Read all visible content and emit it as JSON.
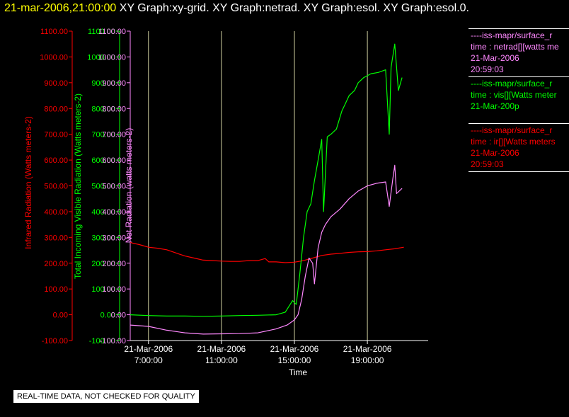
{
  "title": {
    "timestamp": "21-mar-2006,21:00:00",
    "graphs": "XY Graph:xy-grid.  XY Graph:netrad.  XY Graph:esol.  XY Graph:esol.0."
  },
  "notice": "REAL-TIME DATA, NOT CHECKED FOR QUALITY",
  "colors": {
    "infrared": "#ff0000",
    "visible": "#00ff00",
    "net": "#ff88ff",
    "axis": "#ffffff",
    "grid": "#d0d0a0",
    "title_timestamp": "#ffff00"
  },
  "legend": [
    {
      "lines": [
        "----iss-mapr/surface_r",
        "time : netrad[][watts me",
        "21-Mar-2006",
        "20:59:03"
      ],
      "color": "#ff88ff"
    },
    {
      "lines": [
        "----iss-mapr/surface_r",
        "time : vis[][Watts meter",
        "21-Mar-200p"
      ],
      "color": "#00ff00"
    },
    {
      "lines": [
        "----iss-mapr/surface_r",
        "time : ir[][Watts meters",
        "21-Mar-2006",
        "20:59:03"
      ],
      "color": "#ff0000"
    }
  ],
  "chart_data": {
    "type": "line",
    "xlabel": "Time",
    "x_ticks": [
      {
        "date": "21-Mar-2006",
        "time": "7:00:00",
        "hour": 7
      },
      {
        "date": "21-Mar-2006",
        "time": "11:00:00",
        "hour": 11
      },
      {
        "date": "21-Mar-2006",
        "time": "15:00:00",
        "hour": 15
      },
      {
        "date": "21-Mar-2006",
        "time": "19:00:00",
        "hour": 19
      }
    ],
    "xlim": [
      "21-Mar-2006 6:00:00",
      "21-Mar-2006 22:20:00"
    ],
    "ylim": [
      -100,
      1100
    ],
    "y_ticks": [
      "-100.00",
      "0.00",
      "100.00",
      "200.00",
      "300.00",
      "400.00",
      "500.00",
      "600.00",
      "700.00",
      "800.00",
      "900.00",
      "1000.00",
      "1100.00"
    ],
    "axes": [
      {
        "name": "infrared",
        "ylabel": "Infrared Radiation (Watts meters-2)",
        "color": "#ff0000"
      },
      {
        "name": "visible",
        "ylabel": "Total Incoming Visible Radiation (Watts meters-2)",
        "color": "#00ff00"
      },
      {
        "name": "net",
        "ylabel": "Net Radiation (watts meters-2)",
        "color": "#ff88ff"
      }
    ],
    "grid": "vertical",
    "series": [
      {
        "key": "infrared",
        "color": "#ff0000",
        "points": [
          [
            6.0,
            280
          ],
          [
            6.5,
            272
          ],
          [
            7.0,
            262
          ],
          [
            7.5,
            258
          ],
          [
            8.0,
            252
          ],
          [
            8.5,
            240
          ],
          [
            9.0,
            228
          ],
          [
            9.5,
            220
          ],
          [
            10.0,
            212
          ],
          [
            10.5,
            210
          ],
          [
            11.0,
            208
          ],
          [
            11.5,
            207
          ],
          [
            12.0,
            207
          ],
          [
            12.5,
            210
          ],
          [
            13.0,
            210
          ],
          [
            13.4,
            218
          ],
          [
            13.6,
            205
          ],
          [
            14.0,
            205
          ],
          [
            14.5,
            202
          ],
          [
            15.0,
            204
          ],
          [
            15.5,
            210
          ],
          [
            16.0,
            220
          ],
          [
            16.5,
            230
          ],
          [
            17.0,
            235
          ],
          [
            17.5,
            238
          ],
          [
            18.0,
            242
          ],
          [
            18.5,
            244
          ],
          [
            19.0,
            245
          ],
          [
            19.5,
            248
          ],
          [
            20.0,
            252
          ],
          [
            20.5,
            256
          ],
          [
            21.0,
            262
          ]
        ]
      },
      {
        "key": "visible",
        "color": "#00ff00",
        "points": [
          [
            6.0,
            0
          ],
          [
            7.0,
            -3
          ],
          [
            8.0,
            -5
          ],
          [
            9.0,
            -5
          ],
          [
            10.0,
            -6
          ],
          [
            11.0,
            -5
          ],
          [
            12.0,
            -3
          ],
          [
            13.0,
            -2
          ],
          [
            14.0,
            0
          ],
          [
            14.5,
            10
          ],
          [
            14.9,
            55
          ],
          [
            15.1,
            40
          ],
          [
            15.3,
            160
          ],
          [
            15.5,
            300
          ],
          [
            15.7,
            400
          ],
          [
            15.9,
            430
          ],
          [
            16.1,
            520
          ],
          [
            16.3,
            600
          ],
          [
            16.5,
            680
          ],
          [
            16.6,
            400
          ],
          [
            16.8,
            690
          ],
          [
            17.0,
            700
          ],
          [
            17.3,
            720
          ],
          [
            17.6,
            790
          ],
          [
            17.8,
            820
          ],
          [
            18.0,
            850
          ],
          [
            18.3,
            870
          ],
          [
            18.5,
            900
          ],
          [
            18.8,
            920
          ],
          [
            19.2,
            935
          ],
          [
            19.6,
            940
          ],
          [
            20.0,
            950
          ],
          [
            20.2,
            700
          ],
          [
            20.3,
            960
          ],
          [
            20.5,
            1050
          ],
          [
            20.7,
            870
          ],
          [
            20.9,
            920
          ]
        ]
      },
      {
        "key": "net",
        "color": "#ff88ff",
        "points": [
          [
            6.0,
            -40
          ],
          [
            7.0,
            -45
          ],
          [
            8.0,
            -60
          ],
          [
            9.0,
            -70
          ],
          [
            10.0,
            -75
          ],
          [
            11.0,
            -74
          ],
          [
            12.0,
            -73
          ],
          [
            13.0,
            -70
          ],
          [
            14.0,
            -55
          ],
          [
            14.6,
            -40
          ],
          [
            15.0,
            -20
          ],
          [
            15.2,
            0
          ],
          [
            15.4,
            60
          ],
          [
            15.6,
            150
          ],
          [
            15.8,
            220
          ],
          [
            16.0,
            200
          ],
          [
            16.1,
            120
          ],
          [
            16.3,
            260
          ],
          [
            16.5,
            320
          ],
          [
            16.7,
            350
          ],
          [
            17.0,
            380
          ],
          [
            17.5,
            410
          ],
          [
            18.0,
            450
          ],
          [
            18.5,
            480
          ],
          [
            19.0,
            500
          ],
          [
            19.5,
            510
          ],
          [
            20.0,
            515
          ],
          [
            20.2,
            420
          ],
          [
            20.4,
            530
          ],
          [
            20.5,
            580
          ],
          [
            20.6,
            470
          ],
          [
            20.9,
            490
          ]
        ]
      }
    ]
  }
}
